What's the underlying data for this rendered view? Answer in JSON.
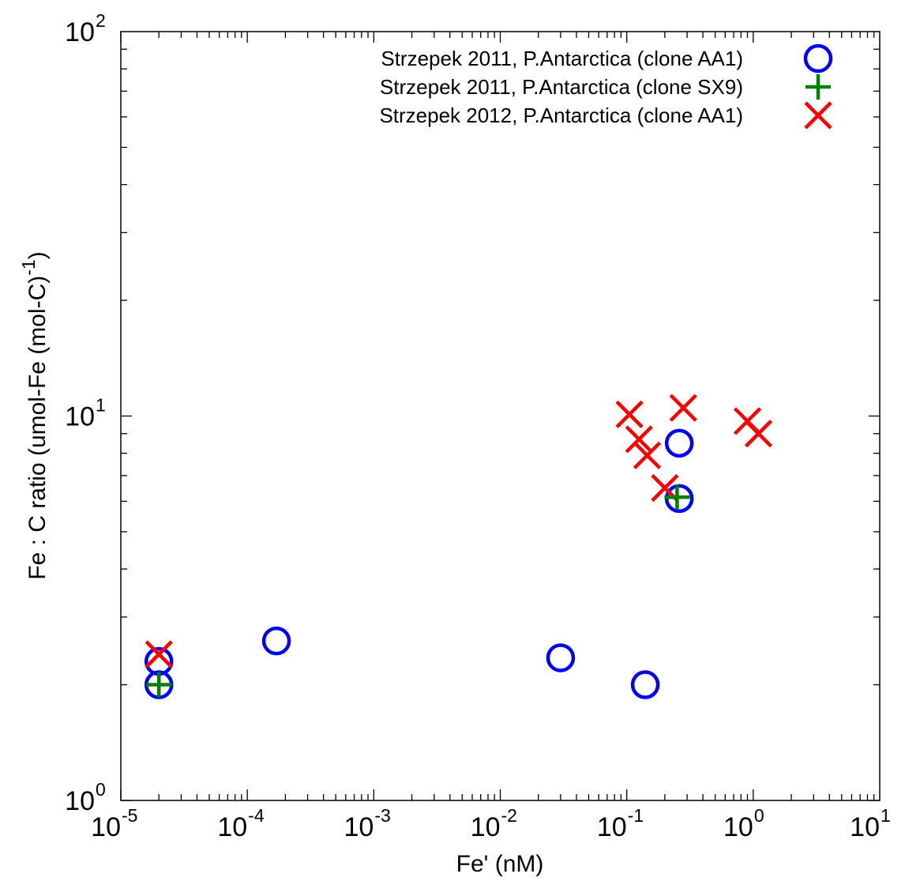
{
  "chart_data": {
    "type": "scatter",
    "title": "",
    "xlabel": "Fe' (nM)",
    "ylabel": {
      "main": "Fe : C ratio (umol-Fe (mol-C)",
      "exponent": "-1",
      "close": ")"
    },
    "x_scale": "log",
    "y_scale": "log",
    "xlim": [
      1e-05,
      10
    ],
    "ylim": [
      1,
      100
    ],
    "x_ticks": [
      {
        "value": 1e-05,
        "base": "10",
        "exp": "-5"
      },
      {
        "value": 0.0001,
        "base": "10",
        "exp": "-4"
      },
      {
        "value": 0.001,
        "base": "10",
        "exp": "-3"
      },
      {
        "value": 0.01,
        "base": "10",
        "exp": "-2"
      },
      {
        "value": 0.1,
        "base": "10",
        "exp": "-1"
      },
      {
        "value": 1,
        "base": "10",
        "exp": "0"
      },
      {
        "value": 10,
        "base": "10",
        "exp": "1"
      }
    ],
    "y_ticks": [
      {
        "value": 1,
        "base": "10",
        "exp": "0"
      },
      {
        "value": 10,
        "base": "10",
        "exp": "1"
      },
      {
        "value": 100,
        "base": "10",
        "exp": "2"
      }
    ],
    "grid": false,
    "legend_position": "top-right",
    "series": [
      {
        "name": "Strzepek 2011, P.Antarctica (clone AA1)",
        "marker": "circle",
        "color": "#0000ff",
        "points": [
          {
            "x": 2e-05,
            "y": 2.3
          },
          {
            "x": 2e-05,
            "y": 2.0
          },
          {
            "x": 0.00017,
            "y": 2.6
          },
          {
            "x": 0.03,
            "y": 2.35
          },
          {
            "x": 0.14,
            "y": 2.0
          },
          {
            "x": 0.26,
            "y": 8.5
          },
          {
            "x": 0.26,
            "y": 6.1
          }
        ]
      },
      {
        "name": "Strzepek 2011, P.Antarctica (clone SX9)",
        "marker": "plus",
        "color": "#008000",
        "points": [
          {
            "x": 2e-05,
            "y": 2.0
          },
          {
            "x": 0.25,
            "y": 6.15
          }
        ]
      },
      {
        "name": "Strzepek 2012, P.Antarctica (clone AA1)",
        "marker": "x",
        "color": "#ff0000",
        "points": [
          {
            "x": 2e-05,
            "y": 2.4
          },
          {
            "x": 0.105,
            "y": 10.1
          },
          {
            "x": 0.125,
            "y": 8.7
          },
          {
            "x": 0.145,
            "y": 7.9
          },
          {
            "x": 0.2,
            "y": 6.5
          },
          {
            "x": 0.28,
            "y": 10.5
          },
          {
            "x": 0.9,
            "y": 9.7
          },
          {
            "x": 1.1,
            "y": 9.0
          }
        ]
      }
    ]
  }
}
